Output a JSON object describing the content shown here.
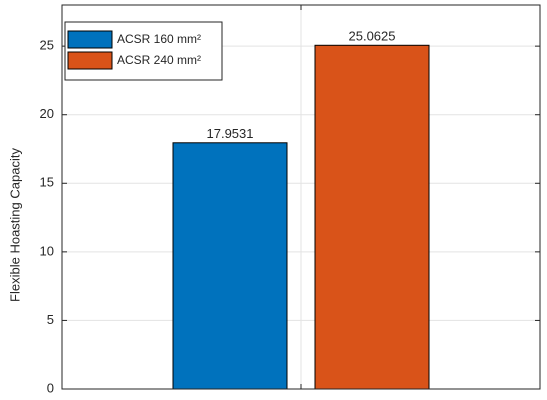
{
  "chart_data": {
    "type": "bar",
    "ylabel": "Flexible Hoasting Capacity",
    "categories": [
      null
    ],
    "series": [
      {
        "name": "ACSR 160 mm²",
        "color": "#0072bd",
        "values": [
          17.9531
        ]
      },
      {
        "name": "ACSR 240 mm²",
        "color": "#d95319",
        "values": [
          25.0625
        ]
      }
    ],
    "ylim": [
      0,
      28
    ],
    "yticks": [
      0,
      5,
      10,
      15,
      20,
      25
    ],
    "grid": true,
    "legend": "upper left"
  }
}
